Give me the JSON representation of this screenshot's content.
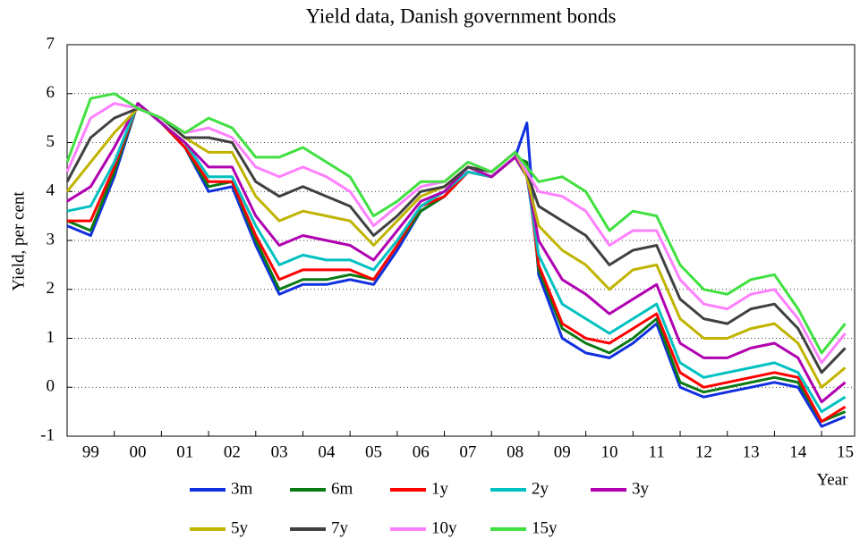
{
  "chart_data": {
    "type": "line",
    "title": "Yield data, Danish government bonds",
    "y_label": "Yield, per cent",
    "x_label": "Year",
    "grid": true,
    "xlim": [
      1999,
      2015.7
    ],
    "ylim": [
      -1,
      7
    ],
    "yticks": [
      -1,
      0,
      1,
      2,
      3,
      4,
      5,
      6,
      7
    ],
    "xticks": [
      {
        "value": 1999.5,
        "label": "99"
      },
      {
        "value": 2000.5,
        "label": "00"
      },
      {
        "value": 2001.5,
        "label": "01"
      },
      {
        "value": 2002.5,
        "label": "02"
      },
      {
        "value": 2003.5,
        "label": "03"
      },
      {
        "value": 2004.5,
        "label": "04"
      },
      {
        "value": 2005.5,
        "label": "05"
      },
      {
        "value": 2006.5,
        "label": "06"
      },
      {
        "value": 2007.5,
        "label": "07"
      },
      {
        "value": 2008.5,
        "label": "08"
      },
      {
        "value": 2009.5,
        "label": "09"
      },
      {
        "value": 2010.5,
        "label": "10"
      },
      {
        "value": 2011.5,
        "label": "11"
      },
      {
        "value": 2012.5,
        "label": "12"
      },
      {
        "value": 2013.5,
        "label": "13"
      },
      {
        "value": 2014.5,
        "label": "14"
      },
      {
        "value": 2015.5,
        "label": "15"
      }
    ],
    "x": [
      1999.0,
      1999.5,
      2000.0,
      2000.5,
      2001.0,
      2001.5,
      2002.0,
      2002.5,
      2003.0,
      2003.5,
      2004.0,
      2004.5,
      2005.0,
      2005.5,
      2006.0,
      2006.5,
      2007.0,
      2007.5,
      2008.0,
      2008.5,
      2008.75,
      2009.0,
      2009.5,
      2010.0,
      2010.5,
      2011.0,
      2011.5,
      2012.0,
      2012.5,
      2013.0,
      2013.5,
      2014.0,
      2014.5,
      2015.0,
      2015.5
    ],
    "series": [
      {
        "name": "3m",
        "color": "#1030e0",
        "values": [
          3.3,
          3.1,
          4.3,
          5.8,
          5.4,
          4.9,
          4.0,
          4.1,
          2.9,
          1.9,
          2.1,
          2.1,
          2.2,
          2.1,
          2.8,
          3.6,
          3.9,
          4.4,
          4.3,
          4.7,
          5.4,
          2.3,
          1.0,
          0.7,
          0.6,
          0.9,
          1.3,
          0.0,
          -0.2,
          -0.1,
          0.0,
          0.1,
          0.0,
          -0.8,
          -0.6
        ]
      },
      {
        "name": "6m",
        "color": "#0a7a14",
        "values": [
          3.4,
          3.2,
          4.4,
          5.8,
          5.4,
          4.9,
          4.1,
          4.2,
          3.0,
          2.0,
          2.2,
          2.2,
          2.3,
          2.2,
          2.9,
          3.6,
          3.9,
          4.4,
          4.3,
          4.7,
          4.6,
          2.4,
          1.2,
          0.9,
          0.7,
          1.0,
          1.4,
          0.1,
          -0.1,
          0.0,
          0.1,
          0.2,
          0.1,
          -0.7,
          -0.5
        ]
      },
      {
        "name": "1y",
        "color": "#ff0000",
        "values": [
          3.4,
          3.4,
          4.5,
          5.8,
          5.4,
          4.9,
          4.2,
          4.2,
          3.1,
          2.2,
          2.4,
          2.4,
          2.4,
          2.2,
          2.9,
          3.7,
          3.9,
          4.4,
          4.3,
          4.7,
          4.4,
          2.5,
          1.3,
          1.0,
          0.9,
          1.2,
          1.5,
          0.3,
          0.0,
          0.1,
          0.2,
          0.3,
          0.2,
          -0.7,
          -0.4
        ]
      },
      {
        "name": "2y",
        "color": "#00c0c0",
        "values": [
          3.6,
          3.7,
          4.6,
          5.8,
          5.4,
          5.0,
          4.3,
          4.3,
          3.3,
          2.5,
          2.7,
          2.6,
          2.6,
          2.4,
          3.0,
          3.7,
          4.0,
          4.4,
          4.3,
          4.7,
          4.3,
          2.7,
          1.7,
          1.4,
          1.1,
          1.4,
          1.7,
          0.5,
          0.2,
          0.3,
          0.4,
          0.5,
          0.3,
          -0.5,
          -0.2
        ]
      },
      {
        "name": "3y",
        "color": "#b000b0",
        "values": [
          3.8,
          4.1,
          4.9,
          5.8,
          5.4,
          5.0,
          4.5,
          4.5,
          3.5,
          2.9,
          3.1,
          3.0,
          2.9,
          2.6,
          3.2,
          3.8,
          4.0,
          4.5,
          4.3,
          4.7,
          4.3,
          3.0,
          2.2,
          1.9,
          1.5,
          1.8,
          2.1,
          0.9,
          0.6,
          0.6,
          0.8,
          0.9,
          0.6,
          -0.3,
          0.1
        ]
      },
      {
        "name": "5y",
        "color": "#c0b400",
        "values": [
          4.0,
          4.6,
          5.2,
          5.7,
          5.5,
          5.1,
          4.8,
          4.8,
          3.9,
          3.4,
          3.6,
          3.5,
          3.4,
          2.9,
          3.4,
          3.9,
          4.1,
          4.5,
          4.4,
          4.8,
          4.3,
          3.3,
          2.8,
          2.5,
          2.0,
          2.4,
          2.5,
          1.4,
          1.0,
          1.0,
          1.2,
          1.3,
          0.9,
          0.0,
          0.4
        ]
      },
      {
        "name": "7y",
        "color": "#404040",
        "values": [
          4.2,
          5.1,
          5.5,
          5.7,
          5.5,
          5.1,
          5.1,
          5.0,
          4.2,
          3.9,
          4.1,
          3.9,
          3.7,
          3.1,
          3.5,
          4.0,
          4.1,
          4.5,
          4.4,
          4.8,
          4.4,
          3.7,
          3.4,
          3.1,
          2.5,
          2.8,
          2.9,
          1.8,
          1.4,
          1.3,
          1.6,
          1.7,
          1.2,
          0.3,
          0.8
        ]
      },
      {
        "name": "10y",
        "color": "#ff80ff",
        "values": [
          4.4,
          5.5,
          5.8,
          5.7,
          5.5,
          5.2,
          5.3,
          5.1,
          4.5,
          4.3,
          4.5,
          4.3,
          4.0,
          3.3,
          3.7,
          4.1,
          4.2,
          4.6,
          4.4,
          4.8,
          4.4,
          4.0,
          3.9,
          3.6,
          2.9,
          3.2,
          3.2,
          2.2,
          1.7,
          1.6,
          1.9,
          2.0,
          1.4,
          0.5,
          1.1
        ]
      },
      {
        "name": "15y",
        "color": "#40e040",
        "values": [
          4.6,
          5.9,
          6.0,
          5.7,
          5.5,
          5.2,
          5.5,
          5.3,
          4.7,
          4.7,
          4.9,
          4.6,
          4.3,
          3.5,
          3.8,
          4.2,
          4.2,
          4.6,
          4.4,
          4.8,
          4.5,
          4.2,
          4.3,
          4.0,
          3.2,
          3.6,
          3.5,
          2.5,
          2.0,
          1.9,
          2.2,
          2.3,
          1.6,
          0.7,
          1.3
        ]
      }
    ]
  }
}
